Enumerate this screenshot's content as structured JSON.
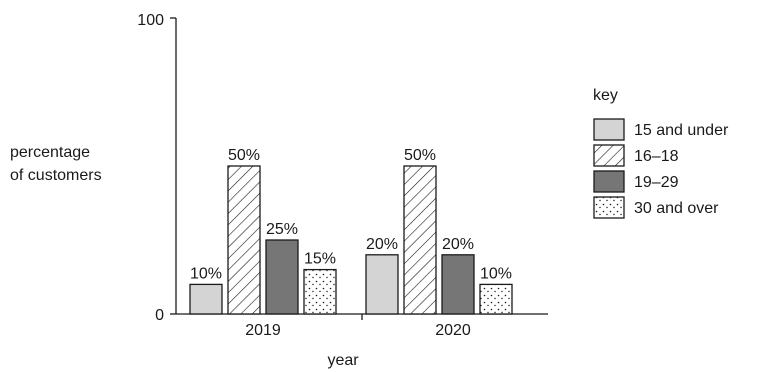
{
  "chart_data": {
    "type": "bar",
    "categories": [
      "2019",
      "2020"
    ],
    "series": [
      {
        "name": "15 and under",
        "values": [
          10,
          20
        ],
        "labels": [
          "10%",
          "20%"
        ],
        "pattern": "light-grey"
      },
      {
        "name": "16–18",
        "values": [
          50,
          50
        ],
        "labels": [
          "50%",
          "50%"
        ],
        "pattern": "diagonal-hatch"
      },
      {
        "name": "19–29",
        "values": [
          25,
          20
        ],
        "labels": [
          "25%",
          "20%"
        ],
        "pattern": "dark-grey"
      },
      {
        "name": "30 and over",
        "values": [
          15,
          10
        ],
        "labels": [
          "15%",
          "10%"
        ],
        "pattern": "dotted"
      }
    ],
    "xlabel": "year",
    "ylabel": [
      "percentage",
      "of customers"
    ],
    "ylim": [
      0,
      100
    ],
    "yticks": [
      "0",
      "100"
    ],
    "legend_title": "key",
    "legend_position": "right",
    "grid": false
  },
  "colors": {
    "light_grey": "#d4d4d4",
    "dark_grey": "#767676",
    "outline": "#1a1a1a",
    "background": "#ffffff"
  }
}
